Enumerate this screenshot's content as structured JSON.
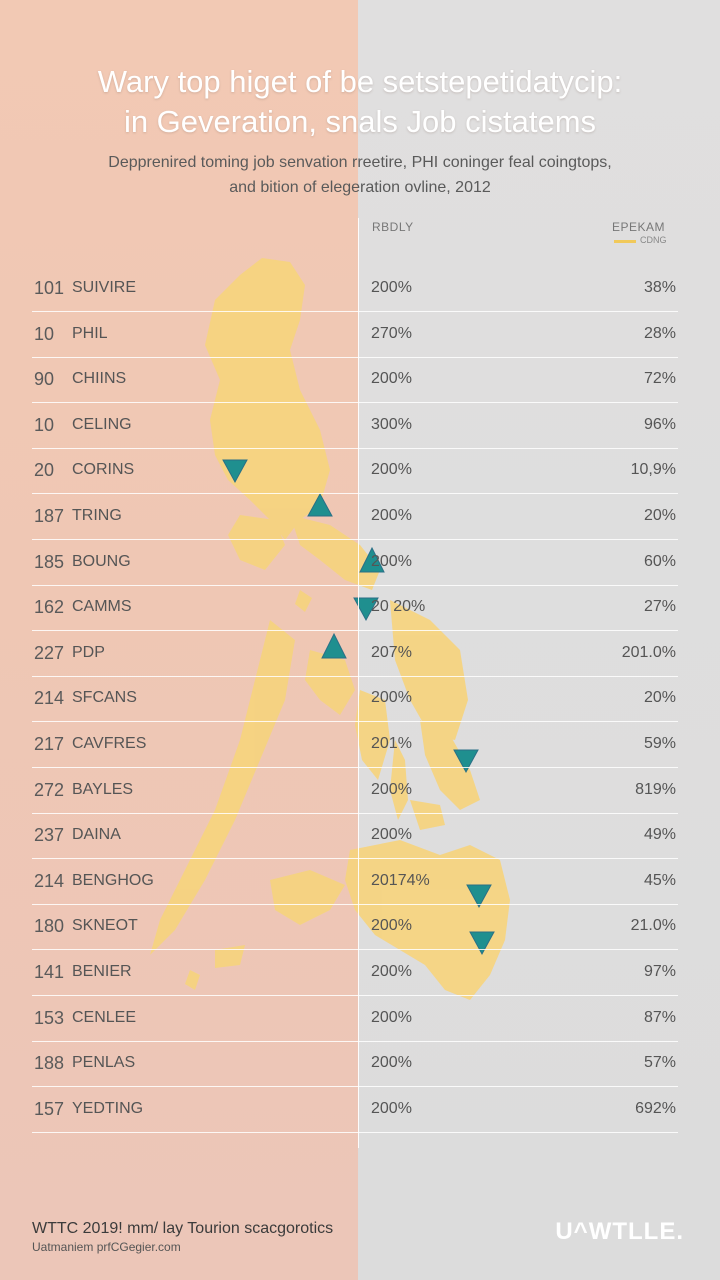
{
  "header": {
    "title_line1": "Wary top higet of be setstepetidatycip:",
    "title_line2": "in Geveration, snals Job cistatems",
    "subtitle_line1": "Depprenired toming job senvation rreetire, PHI coninger feal coingtops,",
    "subtitle_line2": "and bition of elegeration ovline, 2012"
  },
  "columns": {
    "middle": "RBDLY",
    "right": "EPEKAM",
    "legend_sub": "CDNG"
  },
  "colors": {
    "map_fill": "#f6d47e",
    "marker": "#1f8f8f",
    "left_bg": "#f2c9b4",
    "right_bg": "#dcdcdc"
  },
  "rows": [
    {
      "num": "101",
      "name": "SUIVIRE",
      "pct1": "200%",
      "pct2": "38%"
    },
    {
      "num": "10",
      "name": "PHIL",
      "pct1": "270%",
      "pct2": "28%"
    },
    {
      "num": "90",
      "name": "CHIINS",
      "pct1": "200%",
      "pct2": "72%"
    },
    {
      "num": "10",
      "name": "CELING",
      "pct1": "300%",
      "pct2": "96%"
    },
    {
      "num": "20",
      "name": "CORINS",
      "pct1": "200%",
      "pct2": "10,9%"
    },
    {
      "num": "187",
      "name": "TRING",
      "pct1": "200%",
      "pct2": "20%"
    },
    {
      "num": "185",
      "name": "BOUNG",
      "pct1": "200%",
      "pct2": "60%"
    },
    {
      "num": "162",
      "name": "CAMMS",
      "pct1": "20 20%",
      "pct2": "27%"
    },
    {
      "num": "227",
      "name": "PDP",
      "pct1": "207%",
      "pct2": "201.0%"
    },
    {
      "num": "214",
      "name": "SFCANS",
      "pct1": "200%",
      "pct2": "20%"
    },
    {
      "num": "217",
      "name": "CAVFRES",
      "pct1": "201%",
      "pct2": "59%"
    },
    {
      "num": "272",
      "name": "BAYLES",
      "pct1": "200%",
      "pct2": "819%"
    },
    {
      "num": "237",
      "name": "DAINA",
      "pct1": "200%",
      "pct2": "49%"
    },
    {
      "num": "214",
      "name": "BENGHOG",
      "pct1": "20174%",
      "pct2": "45%"
    },
    {
      "num": "180",
      "name": "SKNEOT",
      "pct1": "200%",
      "pct2": "21.0%"
    },
    {
      "num": "141",
      "name": "BENIER",
      "pct1": "200%",
      "pct2": "97%"
    },
    {
      "num": "153",
      "name": "CENLEE",
      "pct1": "200%",
      "pct2": "87%"
    },
    {
      "num": "188",
      "name": "PENLAS",
      "pct1": "200%",
      "pct2": "57%"
    },
    {
      "num": "157",
      "name": "YEDTING",
      "pct1": "200%",
      "pct2": "692%"
    }
  ],
  "markers": [
    {
      "icon": "map-pin-icon",
      "kind": "down"
    },
    {
      "icon": "map-pin-icon",
      "kind": "up"
    },
    {
      "icon": "map-pin-icon",
      "kind": "up"
    },
    {
      "icon": "map-pin-icon",
      "kind": "down"
    },
    {
      "icon": "map-pin-icon",
      "kind": "up"
    },
    {
      "icon": "map-pin-icon",
      "kind": "down"
    },
    {
      "icon": "map-pin-icon",
      "kind": "down"
    },
    {
      "icon": "map-pin-icon",
      "kind": "down"
    }
  ],
  "footer": {
    "line1": "WTTC 2019! mm/ lay Tourion scacgorotics",
    "line2": "Uatmaniem prfCGegier.com",
    "brand": "U^WTLLE."
  }
}
